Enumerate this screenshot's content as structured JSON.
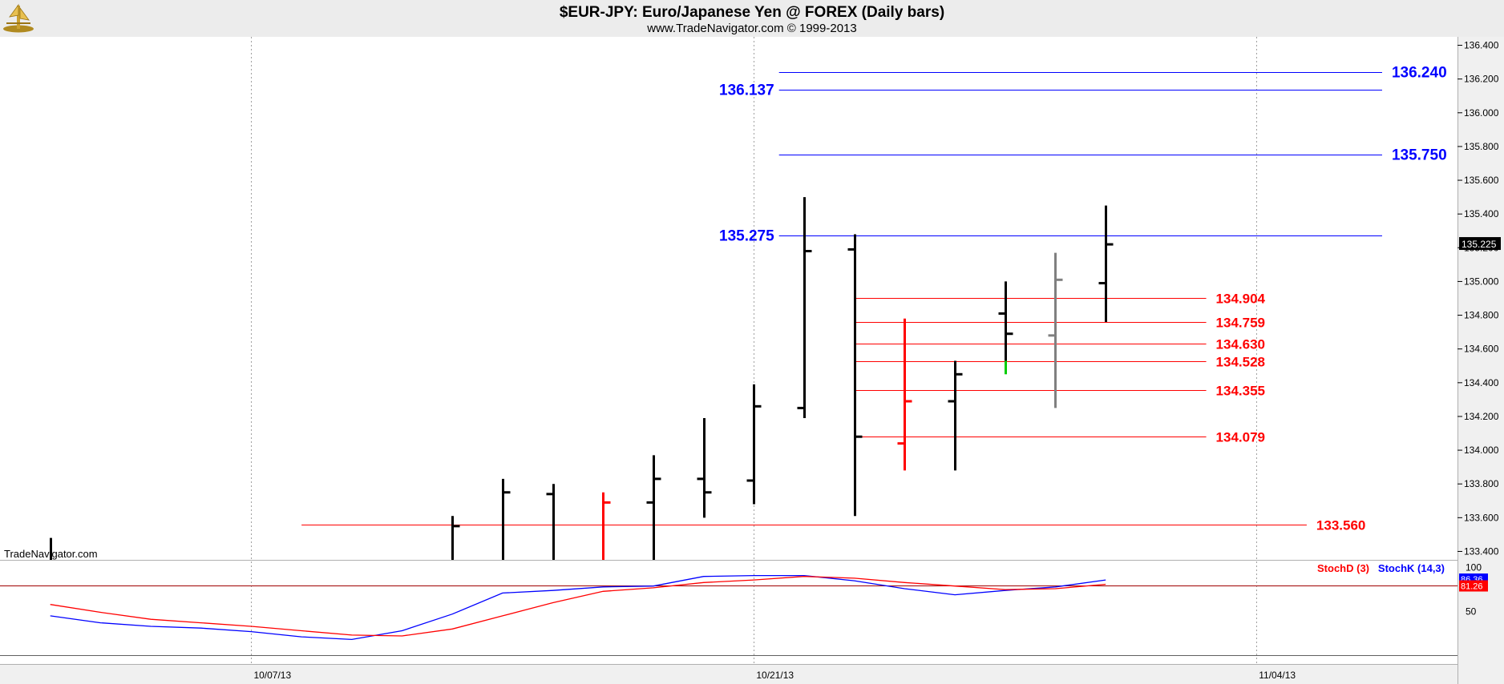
{
  "header": {
    "title": "$EUR-JPY:  Euro/Japanese Yen @ FOREX  (Daily bars)",
    "subtitle": "www.TradeNavigator.com © 1999-2013"
  },
  "watermark": "TradeNavigator.com",
  "colors": {
    "bar_up": "#000000",
    "bar_red": "#ff0000",
    "bar_gray": "#808080",
    "bar_green": "#00cc00",
    "blue_level": "#0000ff",
    "red_level": "#ff0000",
    "stoch_k": "#0000ff",
    "stoch_d": "#ff0000",
    "grid": "#a0a0a0",
    "label_bg": "#000000"
  },
  "icons": {
    "logo": "trade-navigator-logo-icon"
  },
  "chart_data": [
    {
      "type": "ohlc",
      "title": "$EUR-JPY:  Euro/Japanese Yen @ FOREX  (Daily bars)",
      "ylim": [
        133.35,
        136.45
      ],
      "yticks": [
        "133.400",
        "133.600",
        "133.800",
        "134.000",
        "134.200",
        "134.400",
        "134.600",
        "134.800",
        "135.000",
        "135.200",
        "135.400",
        "135.600",
        "135.800",
        "136.000",
        "136.200",
        "136.400"
      ],
      "xlim_days": [
        -1,
        28
      ],
      "x_tick_labels": [
        {
          "label": "10/07/13",
          "day": 4
        },
        {
          "label": "10/21/13",
          "day": 14
        },
        {
          "label": "11/04/13",
          "day": 24
        }
      ],
      "last_price_label": "135.225",
      "last_price": 135.225,
      "bars": [
        {
          "day": 0,
          "open": null,
          "high": 133.48,
          "low": 133.35,
          "close": null,
          "color": "black"
        },
        {
          "day": 8,
          "open": null,
          "high": 133.61,
          "low": 133.35,
          "close": 133.55,
          "color": "black"
        },
        {
          "day": 9,
          "open": null,
          "high": 133.83,
          "low": 133.35,
          "close": 133.75,
          "color": "black"
        },
        {
          "day": 10,
          "open": 133.74,
          "high": 133.8,
          "low": 133.35,
          "close": null,
          "color": "black"
        },
        {
          "day": 11,
          "open": null,
          "high": 133.75,
          "low": 133.35,
          "close": 133.69,
          "color": "red"
        },
        {
          "day": 12,
          "open": 133.69,
          "high": 133.97,
          "low": 133.35,
          "close": 133.83,
          "color": "black"
        },
        {
          "day": 13,
          "open": 133.83,
          "high": 134.19,
          "low": 133.6,
          "close": 133.75,
          "color": "black"
        },
        {
          "day": 14,
          "open": 133.82,
          "high": 134.39,
          "low": 133.68,
          "close": 134.26,
          "color": "black"
        },
        {
          "day": 15,
          "open": 134.25,
          "high": 135.5,
          "low": 134.19,
          "close": 135.18,
          "color": "black"
        },
        {
          "day": 16,
          "open": 135.19,
          "high": 135.28,
          "low": 133.61,
          "close": 134.08,
          "color": "black"
        },
        {
          "day": 17,
          "open": 134.04,
          "high": 134.78,
          "low": 133.88,
          "close": 134.29,
          "color": "red"
        },
        {
          "day": 18,
          "open": 134.29,
          "high": 134.53,
          "low": 133.88,
          "close": 134.45,
          "color": "black"
        },
        {
          "day": 19,
          "open": 134.81,
          "high": 135.0,
          "low": 134.53,
          "close": 134.69,
          "color": "black",
          "tail_color": "green",
          "tail_low": 134.45
        },
        {
          "day": 20,
          "open": 134.68,
          "high": 135.17,
          "low": 134.25,
          "close": 135.01,
          "color": "gray"
        },
        {
          "day": 21,
          "open": 134.99,
          "high": 135.45,
          "low": 134.76,
          "close": 135.22,
          "color": "black"
        }
      ],
      "levels": [
        {
          "value": 136.24,
          "label": "136.240",
          "color": "blue",
          "from_day": 14.5,
          "to_day": 26.5,
          "label_side": "right"
        },
        {
          "value": 136.137,
          "label": "136.137",
          "color": "blue",
          "from_day": 14.5,
          "to_day": 26.5,
          "label_side": "left"
        },
        {
          "value": 135.75,
          "label": "135.750",
          "color": "blue",
          "from_day": 14.5,
          "to_day": 26.5,
          "label_side": "right"
        },
        {
          "value": 135.275,
          "label": "135.275",
          "color": "blue",
          "from_day": 14.5,
          "to_day": 26.5,
          "label_side": "left"
        },
        {
          "value": 134.904,
          "label": "134.904",
          "color": "red",
          "from_day": 16,
          "to_day": 23,
          "label_side": "right"
        },
        {
          "value": 134.759,
          "label": "134.759",
          "color": "red",
          "from_day": 16,
          "to_day": 23,
          "label_side": "right"
        },
        {
          "value": 134.63,
          "label": "134.630",
          "color": "red",
          "from_day": 16,
          "to_day": 23,
          "label_side": "right"
        },
        {
          "value": 134.528,
          "label": "134.528",
          "color": "red",
          "from_day": 16,
          "to_day": 23,
          "label_side": "right"
        },
        {
          "value": 134.355,
          "label": "134.355",
          "color": "red",
          "from_day": 16,
          "to_day": 23,
          "label_side": "right"
        },
        {
          "value": 134.079,
          "label": "134.079",
          "color": "red",
          "from_day": 16,
          "to_day": 23,
          "label_side": "right"
        },
        {
          "value": 133.56,
          "label": "133.560",
          "color": "red",
          "from_day": 5,
          "to_day": 25,
          "label_side": "right"
        }
      ]
    },
    {
      "type": "line",
      "ylim": [
        -10,
        108
      ],
      "yticks": [
        "100",
        "50"
      ],
      "reference_lines": [
        80,
        0
      ],
      "series": [
        {
          "name": "StochK (14,3)",
          "color": "blue",
          "last_label": "86.36",
          "points": [
            [
              0,
              45
            ],
            [
              1,
              37
            ],
            [
              2,
              33
            ],
            [
              3,
              31
            ],
            [
              4,
              27
            ],
            [
              5,
              21
            ],
            [
              6,
              18
            ],
            [
              7,
              28
            ],
            [
              8,
              47
            ],
            [
              9,
              71
            ],
            [
              10,
              74
            ],
            [
              11,
              78
            ],
            [
              12,
              79
            ],
            [
              13,
              90
            ],
            [
              14,
              91
            ],
            [
              15,
              91
            ],
            [
              16,
              85
            ],
            [
              17,
              76
            ],
            [
              18,
              69
            ],
            [
              19,
              74
            ],
            [
              20,
              78
            ],
            [
              21,
              86
            ]
          ]
        },
        {
          "name": "StochD (3)",
          "color": "red",
          "last_label": "81.26",
          "points": [
            [
              0,
              58
            ],
            [
              1,
              49
            ],
            [
              2,
              41
            ],
            [
              3,
              37
            ],
            [
              4,
              33
            ],
            [
              5,
              28
            ],
            [
              6,
              23
            ],
            [
              7,
              22
            ],
            [
              8,
              30
            ],
            [
              9,
              45
            ],
            [
              10,
              60
            ],
            [
              11,
              73
            ],
            [
              12,
              77
            ],
            [
              13,
              83
            ],
            [
              14,
              86
            ],
            [
              15,
              90
            ],
            [
              16,
              88
            ],
            [
              17,
              83
            ],
            [
              18,
              79
            ],
            [
              19,
              75
            ],
            [
              20,
              76
            ],
            [
              21,
              81
            ]
          ]
        }
      ]
    }
  ]
}
